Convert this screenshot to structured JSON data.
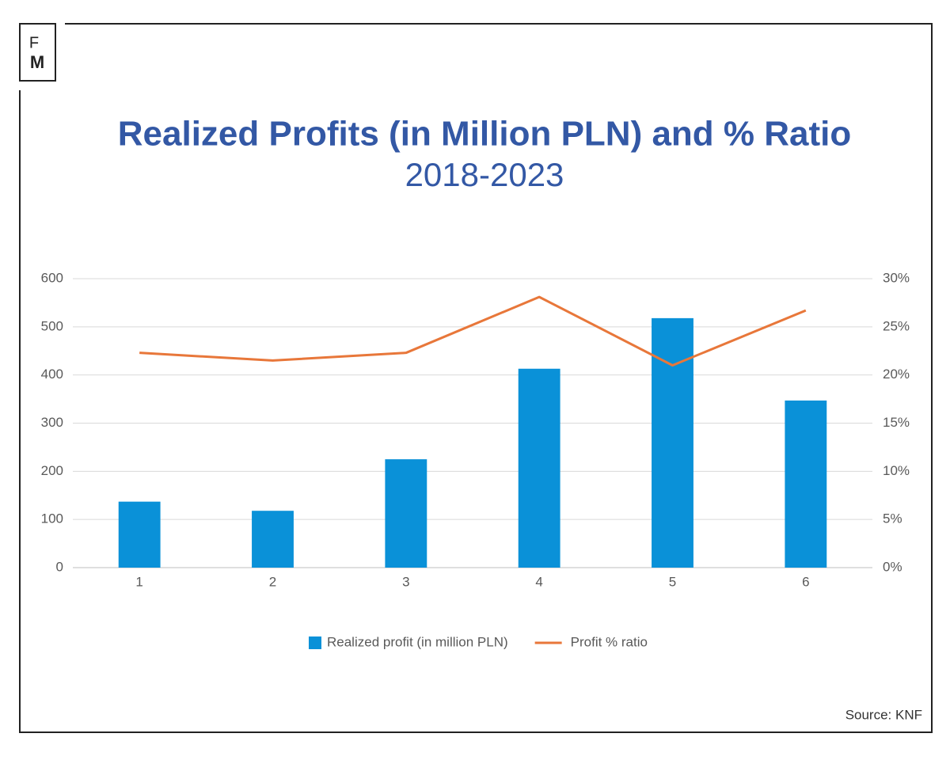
{
  "logo": {
    "top": "F",
    "bottom": "M"
  },
  "chart_data": {
    "type": "bar",
    "title": "Realized Profits (in Million PLN) and % Ratio",
    "subtitle": "2018-2023",
    "categories": [
      "1",
      "2",
      "3",
      "4",
      "5",
      "6"
    ],
    "series": [
      {
        "name": "Realized profit (in million PLN)",
        "type": "bar",
        "color": "#0a91d8",
        "values": [
          137,
          118,
          225,
          413,
          518,
          347
        ]
      },
      {
        "name": "Profit % ratio",
        "type": "line",
        "axis": "y2",
        "color": "#e8773a",
        "values": [
          22.3,
          21.5,
          22.3,
          28.1,
          21.0,
          26.7
        ]
      }
    ],
    "ylim": [
      0,
      600
    ],
    "yticks": [
      0,
      100,
      200,
      300,
      400,
      500,
      600
    ],
    "y2lim": [
      0,
      30
    ],
    "y2ticks": [
      {
        "value": 0,
        "label": "0%"
      },
      {
        "value": 5,
        "label": "5%"
      },
      {
        "value": 10,
        "label": "10%"
      },
      {
        "value": 15,
        "label": "15%"
      },
      {
        "value": 20,
        "label": "20%"
      },
      {
        "value": 25,
        "label": "25%"
      },
      {
        "value": 30,
        "label": "30%"
      }
    ],
    "grid": true,
    "legend": "bottom"
  },
  "source": "Source: KNF"
}
